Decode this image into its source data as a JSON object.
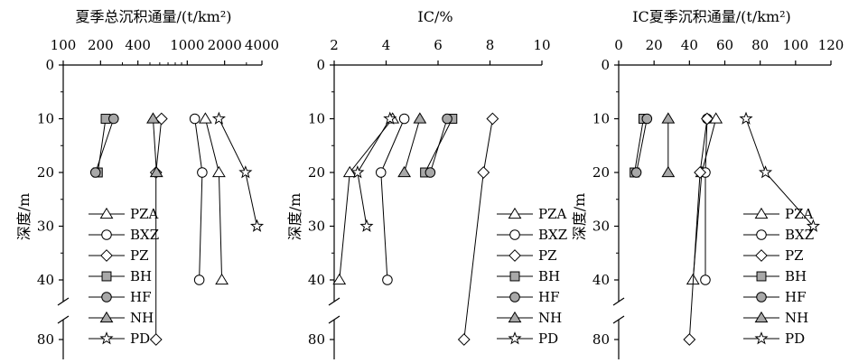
{
  "chart_data": [
    {
      "type": "line",
      "title": "夏季总沉积通量/(t/km²)",
      "xscale": "log",
      "xlim": [
        100,
        4000
      ],
      "xticks": [
        100,
        200,
        400,
        1000,
        2000,
        4000
      ],
      "ylabel": "深度/m",
      "series": [
        {
          "name": "PZA",
          "marker": "triangle",
          "points": [
            [
              1400,
              10
            ],
            [
              1800,
              20
            ],
            [
              1900,
              40
            ]
          ]
        },
        {
          "name": "BXZ",
          "marker": "circle",
          "points": [
            [
              1150,
              10
            ],
            [
              1320,
              20
            ],
            [
              1250,
              40
            ]
          ]
        },
        {
          "name": "PZ",
          "marker": "diamond",
          "points": [
            [
              620,
              10
            ],
            [
              560,
              20
            ],
            [
              560,
              80
            ]
          ]
        },
        {
          "name": "BH",
          "marker": "square-filled",
          "points": [
            [
              220,
              10
            ],
            [
              190,
              20
            ]
          ]
        },
        {
          "name": "HF",
          "marker": "circle-filled",
          "points": [
            [
              255,
              10
            ],
            [
              182,
              20
            ]
          ]
        },
        {
          "name": "NH",
          "marker": "triangle-filled",
          "points": [
            [
              530,
              10
            ],
            [
              565,
              20
            ]
          ]
        },
        {
          "name": "PD",
          "marker": "star",
          "points": [
            [
              1800,
              10
            ],
            [
              2950,
              20
            ],
            [
              3650,
              30
            ]
          ]
        }
      ]
    },
    {
      "type": "line",
      "title": "IC/%",
      "xscale": "linear",
      "xlim": [
        2,
        10
      ],
      "xticks": [
        2,
        4,
        6,
        8,
        10
      ],
      "ylabel": "深度/m",
      "series": [
        {
          "name": "PZA",
          "marker": "triangle",
          "points": [
            [
              4.25,
              10
            ],
            [
              2.6,
              20
            ],
            [
              2.2,
              40
            ]
          ]
        },
        {
          "name": "BXZ",
          "marker": "circle",
          "points": [
            [
              4.7,
              10
            ],
            [
              3.8,
              20
            ],
            [
              4.05,
              40
            ]
          ]
        },
        {
          "name": "PZ",
          "marker": "diamond",
          "points": [
            [
              8.1,
              10
            ],
            [
              7.75,
              20
            ],
            [
              7.0,
              80
            ]
          ]
        },
        {
          "name": "BH",
          "marker": "square-filled",
          "points": [
            [
              6.55,
              10
            ],
            [
              5.5,
              20
            ]
          ]
        },
        {
          "name": "HF",
          "marker": "circle-filled",
          "points": [
            [
              6.35,
              10
            ],
            [
              5.7,
              20
            ]
          ]
        },
        {
          "name": "NH",
          "marker": "triangle-filled",
          "points": [
            [
              5.3,
              10
            ],
            [
              4.7,
              20
            ]
          ]
        },
        {
          "name": "PD",
          "marker": "star",
          "points": [
            [
              4.15,
              10
            ],
            [
              2.9,
              20
            ],
            [
              3.25,
              30
            ]
          ]
        }
      ]
    },
    {
      "type": "line",
      "title": "IC夏季沉积通量/(t/km²)",
      "xscale": "linear",
      "xlim": [
        0,
        120
      ],
      "xticks": [
        0,
        20,
        40,
        60,
        80,
        100,
        120
      ],
      "ylabel": "深度/m",
      "series": [
        {
          "name": "PZA",
          "marker": "triangle",
          "points": [
            [
              55,
              10
            ],
            [
              47,
              20
            ],
            [
              42,
              40
            ]
          ]
        },
        {
          "name": "BXZ",
          "marker": "circle",
          "points": [
            [
              50,
              10
            ],
            [
              49,
              20
            ],
            [
              49,
              40
            ]
          ]
        },
        {
          "name": "PZ",
          "marker": "diamond",
          "points": [
            [
              50,
              10
            ],
            [
              46,
              20
            ],
            [
              40,
              80
            ]
          ]
        },
        {
          "name": "BH",
          "marker": "square-filled",
          "points": [
            [
              14,
              10
            ],
            [
              9,
              20
            ]
          ]
        },
        {
          "name": "HF",
          "marker": "circle-filled",
          "points": [
            [
              16,
              10
            ],
            [
              10,
              20
            ]
          ]
        },
        {
          "name": "NH",
          "marker": "triangle-filled",
          "points": [
            [
              28,
              10
            ],
            [
              28,
              20
            ]
          ]
        },
        {
          "name": "PD",
          "marker": "star",
          "points": [
            [
              72,
              10
            ],
            [
              83,
              20
            ],
            [
              110,
              30
            ]
          ]
        }
      ]
    }
  ],
  "yaxis": {
    "ticks": [
      0,
      10,
      20,
      30,
      40,
      80
    ],
    "break": [
      40,
      80
    ]
  }
}
